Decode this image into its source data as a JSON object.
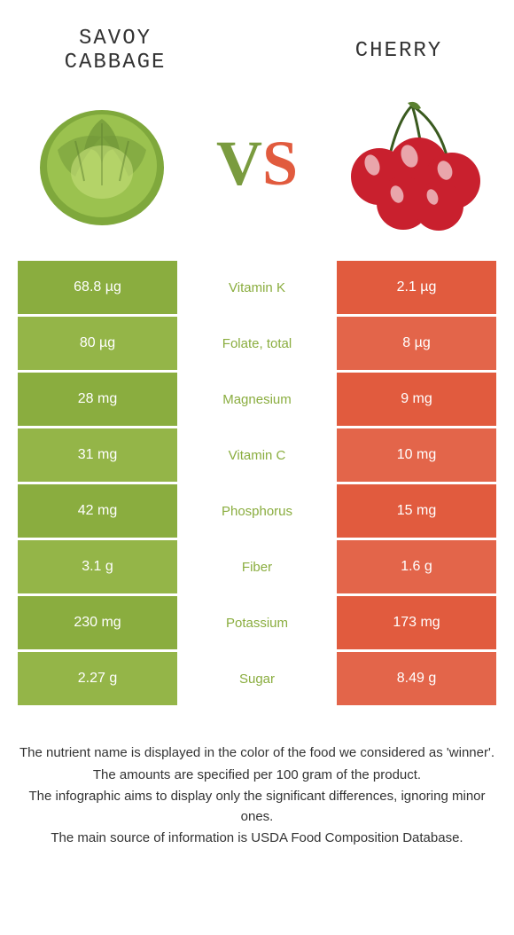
{
  "header": {
    "left_title": "SAVOY CABBAGE",
    "right_title": "CHERRY",
    "vs_v": "V",
    "vs_s": "S"
  },
  "colors": {
    "green_primary": "#8aad3f",
    "green_alt": "#94b548",
    "orange_primary": "#e15b3e",
    "orange_alt": "#e3654a",
    "green_text": "#8aad3f",
    "orange_text": "#e15b3e"
  },
  "nutrients": [
    {
      "name": "Vitamin K",
      "left": "68.8 µg",
      "right": "2.1 µg",
      "winner": "left"
    },
    {
      "name": "Folate, total",
      "left": "80 µg",
      "right": "8 µg",
      "winner": "left"
    },
    {
      "name": "Magnesium",
      "left": "28 mg",
      "right": "9 mg",
      "winner": "left"
    },
    {
      "name": "Vitamin C",
      "left": "31 mg",
      "right": "10 mg",
      "winner": "left"
    },
    {
      "name": "Phosphorus",
      "left": "42 mg",
      "right": "15 mg",
      "winner": "left"
    },
    {
      "name": "Fiber",
      "left": "3.1 g",
      "right": "1.6 g",
      "winner": "left"
    },
    {
      "name": "Potassium",
      "left": "230 mg",
      "right": "173 mg",
      "winner": "left"
    },
    {
      "name": "Sugar",
      "left": "2.27 g",
      "right": "8.49 g",
      "winner": "left"
    }
  ],
  "footer": {
    "line1": "The nutrient name is displayed in the color of the food we considered as 'winner'.",
    "line2": "The amounts are specified per 100 gram of the product.",
    "line3": "The infographic aims to display only the significant differences, ignoring minor ones.",
    "line4": "The main source of information is USDA Food Composition Database."
  }
}
